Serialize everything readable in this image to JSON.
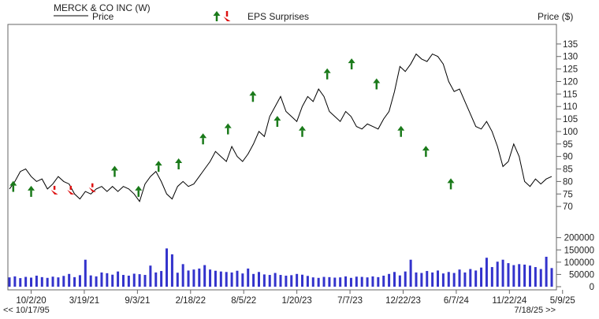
{
  "chart_data": {
    "type": "line",
    "title": "MERCK & CO INC (W)",
    "legend": {
      "price_label": "Price",
      "eps_label": "EPS Surprises",
      "placement": "top-left"
    },
    "ylabel": "Price ($)",
    "price_ylim": [
      65,
      140
    ],
    "price_ticks": [
      70,
      75,
      80,
      85,
      90,
      95,
      100,
      105,
      110,
      115,
      120,
      125,
      130,
      135
    ],
    "volume_ylim": [
      0,
      215000
    ],
    "volume_ticks": [
      0,
      50000,
      100000,
      150000,
      200000
    ],
    "x_range": [
      0,
      100
    ],
    "x_ticks": [
      {
        "pos": 4.0,
        "label": "10/2/20"
      },
      {
        "pos": 13.8,
        "label": "3/19/21"
      },
      {
        "pos": 23.6,
        "label": "9/3/21"
      },
      {
        "pos": 33.4,
        "label": "2/18/22"
      },
      {
        "pos": 43.2,
        "label": "8/5/22"
      },
      {
        "pos": 53.0,
        "label": "1/20/23"
      },
      {
        "pos": 62.8,
        "label": "7/7/23"
      },
      {
        "pos": 72.6,
        "label": "12/22/23"
      },
      {
        "pos": 82.4,
        "label": "6/7/24"
      },
      {
        "pos": 92.2,
        "label": "11/22/24"
      },
      {
        "pos": 102.0,
        "label": "5/9/25"
      }
    ],
    "nav_left": "<< 10/17/95",
    "nav_right": "7/18/25 >>",
    "grid": false,
    "colors": {
      "up": "#1a7a1a",
      "down": "#dd1111",
      "price": "#000000",
      "volume": "#3333cc",
      "frame": "#666666"
    },
    "price": [
      [
        0,
        77
      ],
      [
        1,
        80
      ],
      [
        2,
        84
      ],
      [
        3,
        85
      ],
      [
        4,
        82
      ],
      [
        5,
        80
      ],
      [
        6,
        81
      ],
      [
        7,
        77
      ],
      [
        8,
        79
      ],
      [
        9,
        82
      ],
      [
        10,
        80
      ],
      [
        11,
        79
      ],
      [
        12,
        75
      ],
      [
        13,
        73
      ],
      [
        14,
        76
      ],
      [
        15,
        75
      ],
      [
        16,
        77
      ],
      [
        17,
        78
      ],
      [
        18,
        76
      ],
      [
        19,
        78
      ],
      [
        20,
        76
      ],
      [
        21,
        78
      ],
      [
        22,
        77
      ],
      [
        23,
        75
      ],
      [
        24,
        72
      ],
      [
        25,
        79
      ],
      [
        26,
        82
      ],
      [
        27,
        84
      ],
      [
        28,
        80
      ],
      [
        29,
        75
      ],
      [
        30,
        73
      ],
      [
        31,
        78
      ],
      [
        32,
        80
      ],
      [
        33,
        78
      ],
      [
        34,
        79
      ],
      [
        35,
        82
      ],
      [
        36,
        85
      ],
      [
        37,
        88
      ],
      [
        38,
        92
      ],
      [
        39,
        90
      ],
      [
        40,
        88
      ],
      [
        41,
        94
      ],
      [
        42,
        90
      ],
      [
        43,
        88
      ],
      [
        44,
        91
      ],
      [
        45,
        95
      ],
      [
        46,
        100
      ],
      [
        47,
        98
      ],
      [
        48,
        106
      ],
      [
        49,
        110
      ],
      [
        50,
        114
      ],
      [
        51,
        108
      ],
      [
        52,
        106
      ],
      [
        53,
        104
      ],
      [
        54,
        110
      ],
      [
        55,
        114
      ],
      [
        56,
        112
      ],
      [
        57,
        117
      ],
      [
        58,
        114
      ],
      [
        59,
        108
      ],
      [
        60,
        106
      ],
      [
        61,
        104
      ],
      [
        62,
        108
      ],
      [
        63,
        106
      ],
      [
        64,
        102
      ],
      [
        65,
        101
      ],
      [
        66,
        103
      ],
      [
        67,
        102
      ],
      [
        68,
        101
      ],
      [
        69,
        105
      ],
      [
        70,
        108
      ],
      [
        71,
        116
      ],
      [
        72,
        126
      ],
      [
        73,
        124
      ],
      [
        74,
        127
      ],
      [
        75,
        131
      ],
      [
        76,
        129
      ],
      [
        77,
        128
      ],
      [
        78,
        131
      ],
      [
        79,
        130
      ],
      [
        80,
        127
      ],
      [
        81,
        120
      ],
      [
        82,
        116
      ],
      [
        83,
        117
      ],
      [
        84,
        112
      ],
      [
        85,
        107
      ],
      [
        86,
        102
      ],
      [
        87,
        101
      ],
      [
        88,
        104
      ],
      [
        89,
        100
      ],
      [
        90,
        94
      ],
      [
        91,
        86
      ],
      [
        92,
        88
      ],
      [
        93,
        95
      ],
      [
        94,
        90
      ],
      [
        95,
        80
      ],
      [
        96,
        78
      ],
      [
        97,
        81
      ],
      [
        98,
        79
      ],
      [
        99,
        81
      ],
      [
        100,
        82
      ]
    ],
    "eps_surprises": [
      {
        "x": 0.7,
        "dir": "up",
        "value": 79
      },
      {
        "x": 4.0,
        "dir": "up",
        "value": 77
      },
      {
        "x": 8.3,
        "dir": "down",
        "value": 77
      },
      {
        "x": 11.3,
        "dir": "down",
        "value": 77
      },
      {
        "x": 15.3,
        "dir": "down",
        "value": 78
      },
      {
        "x": 19.4,
        "dir": "up",
        "value": 85
      },
      {
        "x": 23.8,
        "dir": "up",
        "value": 77
      },
      {
        "x": 27.5,
        "dir": "up",
        "value": 87
      },
      {
        "x": 31.2,
        "dir": "up",
        "value": 88
      },
      {
        "x": 35.7,
        "dir": "up",
        "value": 98
      },
      {
        "x": 40.3,
        "dir": "up",
        "value": 102
      },
      {
        "x": 44.9,
        "dir": "up",
        "value": 115
      },
      {
        "x": 49.4,
        "dir": "up",
        "value": 105
      },
      {
        "x": 54.0,
        "dir": "up",
        "value": 101
      },
      {
        "x": 58.6,
        "dir": "up",
        "value": 124
      },
      {
        "x": 63.1,
        "dir": "up",
        "value": 128
      },
      {
        "x": 67.7,
        "dir": "up",
        "value": 120
      },
      {
        "x": 72.2,
        "dir": "up",
        "value": 101
      },
      {
        "x": 76.8,
        "dir": "up",
        "value": 93
      },
      {
        "x": 81.4,
        "dir": "up",
        "value": 80
      }
    ],
    "volume": [
      [
        0,
        38000
      ],
      [
        1,
        42000
      ],
      [
        2,
        35000
      ],
      [
        3,
        40000
      ],
      [
        4,
        37000
      ],
      [
        5,
        45000
      ],
      [
        6,
        39000
      ],
      [
        7,
        36000
      ],
      [
        8,
        41000
      ],
      [
        9,
        38000
      ],
      [
        10,
        44000
      ],
      [
        11,
        52000
      ],
      [
        12,
        39000
      ],
      [
        13,
        47000
      ],
      [
        14,
        110000
      ],
      [
        15,
        46000
      ],
      [
        16,
        42000
      ],
      [
        17,
        58000
      ],
      [
        18,
        55000
      ],
      [
        19,
        49000
      ],
      [
        20,
        62000
      ],
      [
        21,
        48000
      ],
      [
        22,
        45000
      ],
      [
        23,
        53000
      ],
      [
        24,
        51000
      ],
      [
        25,
        48000
      ],
      [
        26,
        86000
      ],
      [
        27,
        58000
      ],
      [
        28,
        64000
      ],
      [
        29,
        156000
      ],
      [
        30,
        132000
      ],
      [
        31,
        57000
      ],
      [
        32,
        92000
      ],
      [
        33,
        66000
      ],
      [
        34,
        70000
      ],
      [
        35,
        74000
      ],
      [
        36,
        88000
      ],
      [
        37,
        70000
      ],
      [
        38,
        65000
      ],
      [
        39,
        62000
      ],
      [
        40,
        60000
      ],
      [
        41,
        58000
      ],
      [
        42,
        65000
      ],
      [
        43,
        54000
      ],
      [
        44,
        74000
      ],
      [
        45,
        52000
      ],
      [
        46,
        60000
      ],
      [
        47,
        50000
      ],
      [
        48,
        48000
      ],
      [
        49,
        56000
      ],
      [
        50,
        48000
      ],
      [
        51,
        45000
      ],
      [
        52,
        47000
      ],
      [
        53,
        52000
      ],
      [
        54,
        49000
      ],
      [
        55,
        44000
      ],
      [
        56,
        38000
      ],
      [
        57,
        36000
      ],
      [
        58,
        40000
      ],
      [
        59,
        39000
      ],
      [
        60,
        37000
      ],
      [
        61,
        38000
      ],
      [
        62,
        42000
      ],
      [
        63,
        36000
      ],
      [
        64,
        41000
      ],
      [
        65,
        40000
      ],
      [
        66,
        38000
      ],
      [
        67,
        42000
      ],
      [
        68,
        39000
      ],
      [
        69,
        45000
      ],
      [
        70,
        52000
      ],
      [
        71,
        60000
      ],
      [
        72,
        46000
      ],
      [
        73,
        62000
      ],
      [
        74,
        110000
      ],
      [
        75,
        58000
      ],
      [
        76,
        56000
      ],
      [
        77,
        64000
      ],
      [
        78,
        58000
      ],
      [
        79,
        66000
      ],
      [
        80,
        54000
      ],
      [
        81,
        60000
      ],
      [
        82,
        56000
      ],
      [
        83,
        70000
      ],
      [
        84,
        58000
      ],
      [
        85,
        72000
      ],
      [
        86,
        66000
      ],
      [
        87,
        78000
      ],
      [
        88,
        118000
      ],
      [
        89,
        80000
      ],
      [
        90,
        102000
      ],
      [
        91,
        110000
      ],
      [
        92,
        96000
      ],
      [
        93,
        88000
      ],
      [
        94,
        92000
      ],
      [
        95,
        90000
      ],
      [
        96,
        86000
      ],
      [
        97,
        80000
      ],
      [
        98,
        72000
      ],
      [
        99,
        122000
      ],
      [
        100,
        76000
      ]
    ]
  }
}
